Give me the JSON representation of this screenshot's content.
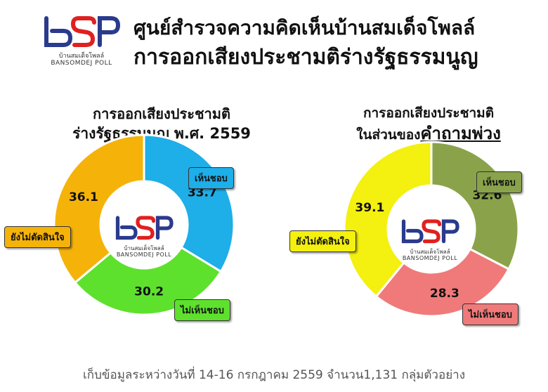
{
  "header": {
    "logo_mark": "bSP",
    "logo_sub_th": "บ้านสมเด็จโพลล์",
    "logo_sub_en": "BANSOMDEJ POLL",
    "title_line1": "ศูนย์สำรวจความคิดเห็นบ้านสมเด็จโพลล์",
    "title_line2": "การออกเสียงประชามติร่างรัฐธรรมนูญ"
  },
  "chart_data": [
    {
      "type": "pie",
      "title_line1": "การออกเสียงประชามติ",
      "title_line2": "ร่างรัฐธรรมนูญ พ.ศ. 2559",
      "series": [
        {
          "name": "เห็นชอบ",
          "value": 33.7,
          "color": "#1eaee8"
        },
        {
          "name": "ไม่เห็นชอบ",
          "value": 30.2,
          "color": "#5ee12d"
        },
        {
          "name": "ยังไม่ตัดสินใจ",
          "value": 36.1,
          "color": "#f5b30a"
        }
      ],
      "value_labels": [
        "33.7",
        "30.2",
        "36.1"
      ]
    },
    {
      "type": "pie",
      "title_line1": "การออกเสียงประชามติ",
      "title_line2_prefix": "ในส่วนของ",
      "title_line2_emph": "คำถามพ่วง",
      "series": [
        {
          "name": "เห็นชอบ",
          "value": 32.6,
          "color": "#8aa34a"
        },
        {
          "name": "ไม่เห็นชอบ",
          "value": 28.3,
          "color": "#f07a7a"
        },
        {
          "name": "ยังไม่ตัดสินใจ",
          "value": 39.1,
          "color": "#f4f00f"
        }
      ],
      "value_labels": [
        "32.6",
        "28.3",
        "39.1"
      ]
    }
  ],
  "footer": "เก็บข้อมูลระหว่างวันที่ 14-16 กรกฎาคม 2559 จำนวน1,131 กลุ่มตัวอย่าง"
}
